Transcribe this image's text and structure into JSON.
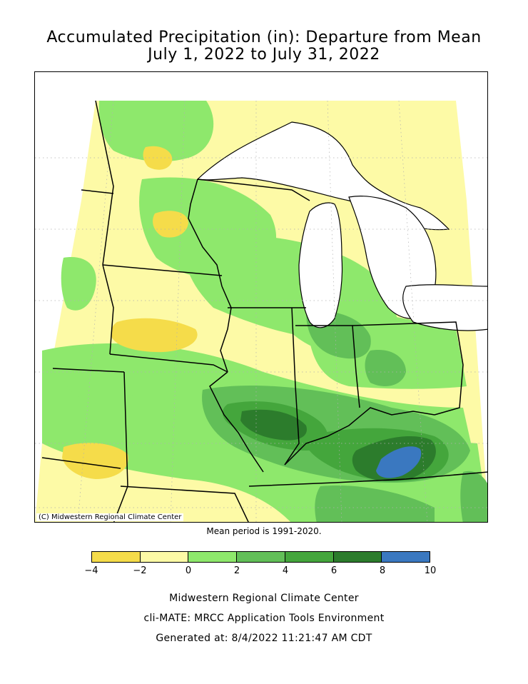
{
  "title": {
    "line1": "Accumulated Precipitation (in): Departure from Mean",
    "line2": "July 1, 2022 to July 31, 2022"
  },
  "map": {
    "copyright": "(C) Midwestern Regional Climate Center",
    "colors": {
      "dry_4_2": "#f5dc4a",
      "dry_2_0": "#fdfaa6",
      "wet_0_2": "#8ee86c",
      "wet_2_4": "#62bf58",
      "wet_4_6": "#44a63c",
      "wet_6_8": "#2c7c2c",
      "wet_8_10": "#3a78c0",
      "water": "#ffffff",
      "borders": "#000000",
      "grid": "#b0b0b0"
    }
  },
  "mean_period": "Mean period is 1991-2020.",
  "legend": {
    "colors": [
      "#f5dc4a",
      "#fdfaa6",
      "#8ee86c",
      "#62bf58",
      "#44a63c",
      "#2c7c2c",
      "#3a78c0"
    ],
    "ticks": [
      "−4",
      "−2",
      "0",
      "2",
      "4",
      "6",
      "8",
      "10"
    ]
  },
  "footer": {
    "line1": "Midwestern Regional Climate Center",
    "line2": "cli-MATE: MRCC Application Tools Environment",
    "line3": "Generated at: 8/4/2022 11:21:47 AM CDT"
  }
}
